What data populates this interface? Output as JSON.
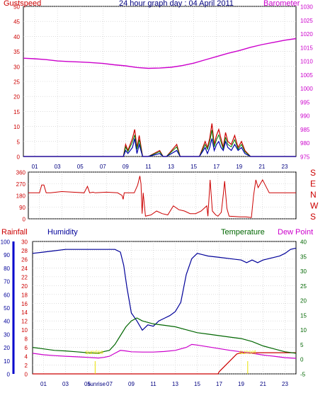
{
  "header": {
    "title": "24 hour graph day : 04 April 2011",
    "left_label": "Gustspeed",
    "right_label": "Barometer"
  },
  "colors": {
    "frame": "#000000",
    "grid": "#c8c8c8",
    "gust": "#cc0000",
    "wind": "#0000aa",
    "gust_green": "#008000",
    "barometer": "#cc00cc",
    "direction": "#cc0000",
    "humidity": "#000099",
    "temperature": "#006600",
    "dewpoint": "#cc00cc",
    "rain": "#cc0000",
    "sun": "#e8e000",
    "rain_axis": "#0000cc"
  },
  "chart_data": [
    {
      "type": "line",
      "name": "wind-and-pressure",
      "title": "24 hour graph day : 04 April 2011",
      "x_ticks": [
        "01",
        "03",
        "05",
        "07",
        "09",
        "11",
        "13",
        "15",
        "17",
        "19",
        "21",
        "23"
      ],
      "xlim": [
        0,
        24
      ],
      "left_axis": {
        "label": "Gustspeed",
        "ticks": [
          "0",
          "5",
          "10",
          "15",
          "20",
          "25",
          "30",
          "35",
          "40",
          "45",
          "50"
        ],
        "ylim": [
          0,
          50
        ]
      },
      "right_axis": {
        "label": "Barometer",
        "ticks": [
          "975",
          "980",
          "985",
          "990",
          "995",
          "1000",
          "1005",
          "1010",
          "1015",
          "1020",
          "1025",
          "1030"
        ],
        "ylim": [
          975,
          1030
        ]
      },
      "series": [
        {
          "name": "Barometer",
          "axis": "right",
          "x": [
            0,
            1,
            2,
            3,
            4,
            5,
            6,
            7,
            8,
            9,
            10,
            11,
            12,
            13,
            14,
            15,
            16,
            17,
            18,
            19,
            20,
            21,
            22,
            23,
            24
          ],
          "values": [
            1011,
            1010.8,
            1010.5,
            1010,
            1009.8,
            1009.6,
            1009.4,
            1009.1,
            1008.6,
            1008.2,
            1007.6,
            1007.3,
            1007.4,
            1007.7,
            1008.3,
            1009.2,
            1010.4,
            1011.6,
            1012.8,
            1013.8,
            1015,
            1016,
            1016.8,
            1017.6,
            1018.2
          ]
        },
        {
          "name": "Gustspeed",
          "axis": "left",
          "x": [
            0,
            8.8,
            9.0,
            9.2,
            9.6,
            9.8,
            10.0,
            10.2,
            10.5,
            11.0,
            12.0,
            12.3,
            12.6,
            13.5,
            13.8,
            14.0,
            15.5,
            16.0,
            16.2,
            16.4,
            16.6,
            16.8,
            17.0,
            17.2,
            17.4,
            17.6,
            17.8,
            18.0,
            18.3,
            18.6,
            18.9,
            19.2,
            19.5,
            20,
            24
          ],
          "values": [
            0,
            0,
            4,
            2,
            6,
            9,
            3,
            7,
            0,
            0,
            2,
            0,
            0,
            4,
            0,
            0,
            0,
            5,
            3,
            6,
            11,
            4,
            7,
            9,
            6,
            3,
            8,
            5,
            4,
            7,
            3,
            5,
            2,
            0,
            0
          ]
        },
        {
          "name": "Windspeed",
          "axis": "left",
          "x": [
            0,
            8.8,
            9.0,
            9.2,
            9.6,
            9.8,
            10.0,
            10.2,
            10.5,
            11.0,
            12.0,
            12.3,
            12.6,
            13.5,
            13.8,
            14.0,
            15.5,
            16.0,
            16.2,
            16.4,
            16.6,
            16.8,
            17.0,
            17.2,
            17.4,
            17.6,
            17.8,
            18.0,
            18.3,
            18.6,
            18.9,
            19.2,
            19.5,
            20,
            24
          ],
          "values": [
            0,
            0,
            2,
            1,
            3,
            6,
            1,
            4,
            0,
            0,
            1,
            0,
            0,
            2,
            0,
            0,
            0,
            3,
            1,
            3,
            6,
            2,
            4,
            5,
            3,
            2,
            5,
            3,
            2,
            4,
            2,
            3,
            1,
            0,
            0
          ]
        }
      ]
    },
    {
      "type": "line",
      "name": "wind-direction",
      "y_ticks": [
        "360",
        "270",
        "180",
        "90",
        "0"
      ],
      "ylim": [
        0,
        360
      ],
      "right_letters": [
        "S",
        "E",
        "N",
        "W",
        "S"
      ],
      "x": [
        0,
        1.0,
        1.2,
        1.4,
        1.6,
        2.0,
        3.0,
        4.0,
        5.0,
        5.3,
        5.5,
        5.8,
        6.0,
        7.0,
        8.0,
        8.4,
        8.5,
        8.6,
        9.0,
        9.5,
        9.8,
        10.0,
        10.1,
        10.2,
        10.3,
        10.5,
        11.0,
        11.5,
        12.0,
        12.5,
        13.0,
        13.5,
        14.0,
        14.5,
        15.0,
        15.5,
        16.0,
        16.1,
        16.3,
        16.5,
        16.8,
        17.0,
        17.3,
        17.5,
        17.6,
        17.8,
        18.0,
        19.0,
        19.5,
        20.0,
        20.2,
        20.4,
        20.6,
        21.0,
        21.3,
        21.6,
        22.0,
        23.0,
        24
      ],
      "values": [
        200,
        200,
        260,
        260,
        200,
        200,
        210,
        205,
        200,
        250,
        200,
        205,
        200,
        205,
        200,
        180,
        150,
        200,
        200,
        200,
        260,
        330,
        270,
        40,
        200,
        20,
        30,
        60,
        40,
        30,
        100,
        70,
        60,
        40,
        40,
        60,
        100,
        20,
        300,
        60,
        30,
        20,
        50,
        200,
        290,
        80,
        20,
        15,
        15,
        10,
        180,
        300,
        240,
        300,
        250,
        200,
        200,
        200,
        200
      ]
    },
    {
      "type": "line",
      "name": "temperature-humidity",
      "x_ticks": [
        "01",
        "03",
        "05",
        "07",
        "09",
        "11",
        "13",
        "15",
        "17",
        "19",
        "21",
        "23"
      ],
      "xlim": [
        0,
        24
      ],
      "rain_axis": {
        "label": "Rainfall",
        "ticks": [
          "0",
          "2",
          "4",
          "6",
          "8",
          "10",
          "12",
          "14",
          "16",
          "18",
          "20",
          "22",
          "24",
          "26",
          "28",
          "30"
        ],
        "ylim": [
          0,
          30
        ]
      },
      "humidity_axis": {
        "label": "Humidity",
        "ticks": [
          "0",
          "10",
          "20",
          "30",
          "40",
          "50",
          "60",
          "70",
          "80",
          "90",
          "100"
        ],
        "ylim": [
          0,
          100
        ]
      },
      "temperature_axis": {
        "label": "Temperature",
        "ticks": [
          "-5",
          "0",
          "5",
          "10",
          "15",
          "20",
          "25",
          "30",
          "35",
          "40"
        ],
        "ylim": [
          -5,
          40
        ]
      },
      "legend_right": "Dew Point",
      "annotations": [
        "sunrise",
        "sunset"
      ],
      "sunrise_x": 5.7,
      "sunset_x": 19.6,
      "series": [
        {
          "name": "Humidity",
          "axis": "humidity",
          "x": [
            0,
            1,
            2,
            3,
            4,
            5,
            6,
            7,
            7.5,
            8,
            8.3,
            8.6,
            9,
            9.5,
            10,
            10.5,
            11,
            11.5,
            12,
            12.5,
            13,
            13.5,
            14,
            14.5,
            15,
            15.5,
            16,
            17,
            18,
            19,
            19.5,
            20,
            20.5,
            21,
            21.5,
            22,
            22.5,
            23,
            23.5,
            24
          ],
          "values": [
            91,
            92,
            93,
            94,
            94,
            94,
            94,
            94,
            94,
            92,
            82,
            65,
            46,
            40,
            33,
            37,
            36,
            40,
            42,
            44,
            47,
            54,
            75,
            87,
            91,
            90,
            89,
            88,
            87,
            86,
            84,
            86,
            84,
            86,
            87,
            88,
            89,
            91,
            94,
            95
          ]
        },
        {
          "name": "Temperature",
          "axis": "temperature",
          "x": [
            0,
            1,
            2,
            3,
            4,
            5,
            6,
            6.5,
            7,
            7.5,
            8,
            8.5,
            9,
            9.5,
            10,
            10.5,
            11,
            12,
            13,
            14,
            15,
            16,
            17,
            18,
            19,
            20,
            21,
            22,
            23,
            24
          ],
          "values": [
            4,
            3.5,
            3,
            2.8,
            2.5,
            2.2,
            2,
            2.6,
            3,
            5,
            8,
            11,
            13,
            14,
            13,
            12.5,
            12,
            11.5,
            11,
            10,
            9,
            8.5,
            8,
            7.5,
            7,
            6,
            4.5,
            3.5,
            2.5,
            2
          ]
        },
        {
          "name": "Dew Point",
          "axis": "temperature",
          "x": [
            0,
            1,
            2,
            3,
            4,
            5,
            6,
            6.5,
            7,
            7.5,
            8,
            8.5,
            9,
            10,
            11,
            12,
            13,
            14,
            14.5,
            15,
            16,
            17,
            18,
            19,
            20,
            21,
            22,
            23,
            24
          ],
          "values": [
            2,
            1.5,
            1.2,
            1,
            0.8,
            0.6,
            0.4,
            0.6,
            1,
            2,
            3,
            2.8,
            2.5,
            2.4,
            2.4,
            2.6,
            3,
            4,
            5,
            4.8,
            4.2,
            3.6,
            3,
            2.5,
            2,
            1.4,
            1,
            0.5,
            0.3
          ]
        },
        {
          "name": "Rainfall",
          "axis": "rain",
          "x": [
            0,
            16.9,
            17.0,
            17.8,
            18.2,
            18.6,
            19.0,
            19.8,
            24
          ],
          "values": [
            0,
            0,
            0.5,
            2.5,
            3.5,
            4.5,
            4.8,
            4.8,
            4.8
          ]
        }
      ]
    }
  ]
}
